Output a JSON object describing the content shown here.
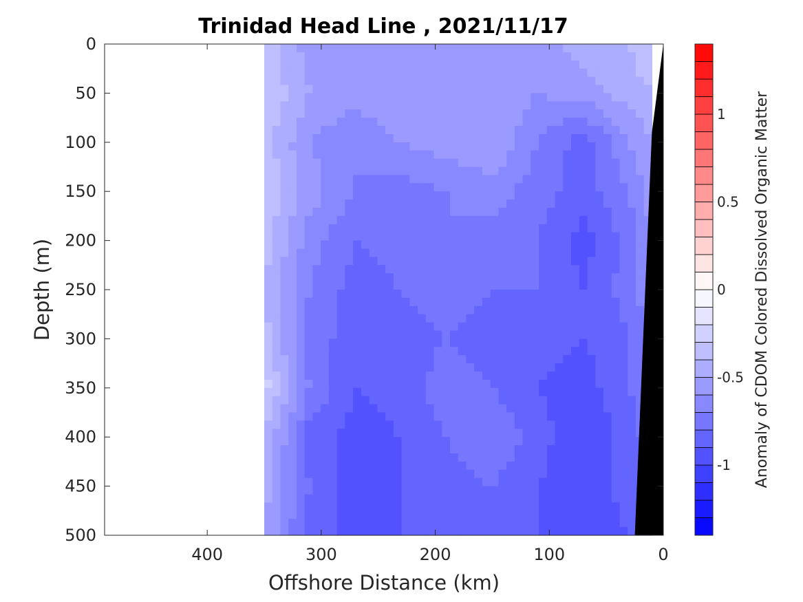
{
  "chart_data": {
    "type": "heatmap",
    "title": "Trinidad Head Line , 2021/11/17",
    "xlabel": "Offshore Distance (km)",
    "ylabel": "Depth (m)",
    "xlim": [
      0,
      490
    ],
    "x_reversed": true,
    "ylim": [
      0,
      500
    ],
    "y_reversed": true,
    "x_ticks": [
      "400",
      "300",
      "200",
      "100",
      "0"
    ],
    "x_tick_values": [
      400,
      300,
      200,
      100,
      0
    ],
    "y_ticks": [
      "0",
      "50",
      "100",
      "150",
      "200",
      "250",
      "300",
      "350",
      "400",
      "450",
      "500"
    ],
    "y_tick_values": [
      0,
      50,
      100,
      150,
      200,
      250,
      300,
      350,
      400,
      450,
      500
    ],
    "colorbar": {
      "label": "Anomaly of CDOM Colored Dissolved Organic Matter",
      "min": -1.4,
      "max": 1.4,
      "step": 0.1,
      "ticks": [
        "-1",
        "-0.5",
        "0",
        "0.5",
        "1"
      ],
      "tick_values": [
        -1,
        -0.5,
        0,
        0.5,
        1
      ],
      "low_color": "#0000ff",
      "mid_color": "#ffffff",
      "high_color": "#ff0000"
    },
    "data_extent": {
      "x_min": 10,
      "x_max": 350,
      "y_min": 0,
      "y_max": 500
    },
    "bottom_topography": [
      {
        "x": 0,
        "y": 0
      },
      {
        "x": 10,
        "y": 90
      },
      {
        "x": 25,
        "y": 500
      }
    ],
    "grid_x": [
      350,
      310,
      270,
      230,
      190,
      150,
      110,
      70,
      30,
      10
    ],
    "grid_y": [
      0,
      50,
      100,
      150,
      200,
      250,
      300,
      350,
      400,
      450,
      500
    ],
    "values": [
      [
        -0.35,
        -0.55,
        -0.6,
        -0.6,
        -0.6,
        -0.6,
        -0.55,
        -0.45,
        -0.4,
        -0.3
      ],
      [
        -0.3,
        -0.5,
        -0.55,
        -0.5,
        -0.55,
        -0.5,
        -0.6,
        -0.55,
        -0.45,
        -0.4
      ],
      [
        -0.35,
        -0.6,
        -0.7,
        -0.6,
        -0.55,
        -0.5,
        -0.7,
        -0.85,
        -0.6,
        -0.5
      ],
      [
        -0.3,
        -0.55,
        -0.7,
        -0.75,
        -0.7,
        -0.65,
        -0.75,
        -0.85,
        -0.7,
        -0.55
      ],
      [
        -0.35,
        -0.65,
        -0.8,
        -0.75,
        -0.7,
        -0.75,
        -0.8,
        -0.95,
        -0.75,
        -0.6
      ],
      [
        -0.4,
        -0.7,
        -0.85,
        -0.8,
        -0.75,
        -0.8,
        -0.8,
        -0.9,
        -0.75,
        -0.6
      ],
      [
        -0.35,
        -0.75,
        -0.85,
        -0.85,
        -0.8,
        -0.85,
        -0.85,
        -0.9,
        -0.8,
        -0.65
      ],
      [
        -0.25,
        -0.7,
        -0.9,
        -0.85,
        -0.75,
        -0.8,
        -0.9,
        -0.95,
        -0.8,
        -0.7
      ],
      [
        -0.4,
        -0.85,
        -0.95,
        -0.9,
        -0.8,
        -0.7,
        -0.85,
        -1.0,
        -0.85,
        -0.75
      ],
      [
        -0.45,
        -0.8,
        -0.95,
        -0.9,
        -0.85,
        -0.8,
        -0.9,
        -1.0,
        -0.85,
        -0.8
      ],
      [
        -0.5,
        -0.85,
        -0.95,
        -0.9,
        -0.85,
        -0.85,
        -0.9,
        -0.95,
        -0.9,
        -0.85
      ]
    ]
  }
}
